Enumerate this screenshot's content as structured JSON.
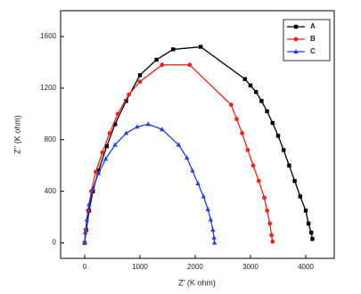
{
  "chart_data": {
    "type": "line",
    "x_label": "Z' (K ohm)",
    "y_label": "Z'' (K ohm)",
    "xlim": [
      -435,
      4516
    ],
    "ylim": [
      -120,
      1800
    ],
    "xticks": [
      0,
      1000,
      2000,
      3000,
      4000
    ],
    "yticks": [
      0,
      400,
      800,
      1200,
      1600
    ],
    "legend": "top-right",
    "series": [
      {
        "name": "A",
        "color": "#000000",
        "marker": "square",
        "x": [
          0,
          30,
          80,
          150,
          250,
          400,
          550,
          750,
          1000,
          1300,
          1600,
          2100,
          2900,
          3000,
          3100,
          3200,
          3300,
          3400,
          3500,
          3600,
          3700,
          3800,
          3900,
          4000,
          4050,
          4100,
          4120
        ],
        "values": [
          0,
          100,
          250,
          400,
          560,
          750,
          920,
          1100,
          1300,
          1420,
          1500,
          1520,
          1270,
          1220,
          1170,
          1100,
          1020,
          930,
          830,
          720,
          600,
          480,
          360,
          250,
          150,
          80,
          30
        ]
      },
      {
        "name": "B",
        "color": "#e8261c",
        "marker": "circle",
        "x": [
          0,
          20,
          60,
          120,
          200,
          320,
          450,
          600,
          800,
          1000,
          1400,
          1900,
          2650,
          2750,
          2850,
          2950,
          3050,
          3150,
          3250,
          3300,
          3350,
          3380,
          3400
        ],
        "values": [
          0,
          100,
          250,
          400,
          550,
          700,
          850,
          1000,
          1150,
          1250,
          1380,
          1380,
          1070,
          960,
          850,
          720,
          600,
          480,
          350,
          250,
          150,
          60,
          10
        ]
      },
      {
        "name": "C",
        "color": "#1f3fe0",
        "marker": "triangle",
        "x": [
          0,
          10,
          40,
          80,
          150,
          250,
          380,
          550,
          750,
          950,
          1150,
          1400,
          1700,
          1850,
          1950,
          2050,
          2150,
          2230,
          2280,
          2320,
          2340,
          2350
        ],
        "values": [
          0,
          80,
          180,
          300,
          420,
          540,
          650,
          760,
          850,
          900,
          920,
          880,
          760,
          660,
          560,
          460,
          360,
          260,
          180,
          100,
          40,
          0
        ]
      }
    ]
  }
}
